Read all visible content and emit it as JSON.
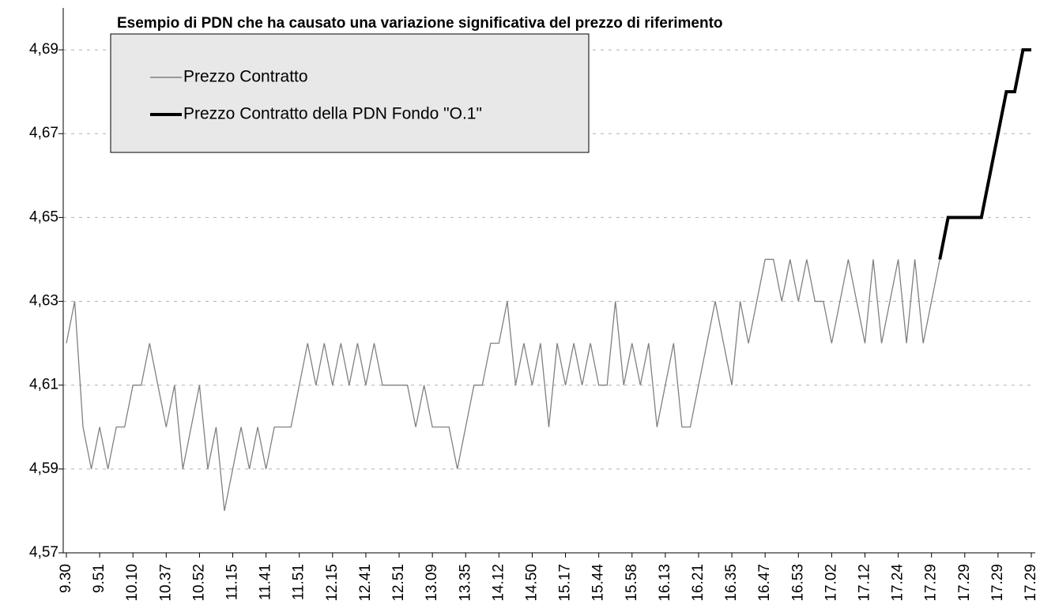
{
  "chart_data": {
    "type": "line",
    "title": "Esempio di PDN che ha causato una variazione significativa del prezzo di riferimento",
    "categories": [
      "9.30",
      null,
      null,
      null,
      "9.51",
      null,
      null,
      null,
      "10.10",
      null,
      null,
      null,
      "10.37",
      null,
      null,
      null,
      "10.52",
      null,
      null,
      null,
      "11.15",
      null,
      null,
      null,
      "11.41",
      null,
      null,
      null,
      "11.51",
      null,
      null,
      null,
      "12.15",
      null,
      null,
      null,
      "12.41",
      null,
      null,
      null,
      "12.51",
      null,
      null,
      null,
      "13.09",
      null,
      null,
      null,
      "13.35",
      null,
      null,
      null,
      "14.12",
      null,
      null,
      null,
      "14.50",
      null,
      null,
      null,
      "15.17",
      null,
      null,
      null,
      "15.44",
      null,
      null,
      null,
      "15.58",
      null,
      null,
      null,
      "16.13",
      null,
      null,
      null,
      "16.21",
      null,
      null,
      null,
      "16.35",
      null,
      null,
      null,
      "16.47",
      null,
      null,
      null,
      "16.53",
      null,
      null,
      null,
      "17.02",
      null,
      null,
      null,
      "17.12",
      null,
      null,
      null,
      "17.24",
      null,
      null,
      null,
      "17.29",
      null,
      null,
      null,
      "17.29",
      null,
      null,
      null,
      "17.29",
      null,
      null,
      null,
      "17.29"
    ],
    "series": [
      {
        "name": "Prezzo Contratto",
        "color": "#808080",
        "values": [
          4.62,
          4.63,
          4.6,
          4.59,
          4.6,
          4.59,
          4.6,
          4.6,
          4.61,
          4.61,
          4.62,
          4.61,
          4.6,
          4.61,
          4.59,
          4.6,
          4.61,
          4.59,
          4.6,
          4.58,
          4.59,
          4.6,
          4.59,
          4.6,
          4.59,
          4.6,
          4.6,
          4.6,
          4.61,
          4.62,
          4.61,
          4.62,
          4.61,
          4.62,
          4.61,
          4.62,
          4.61,
          4.62,
          4.61,
          4.61,
          4.61,
          4.61,
          4.6,
          4.61,
          4.6,
          4.6,
          4.6,
          4.59,
          4.6,
          4.61,
          4.61,
          4.62,
          4.62,
          4.63,
          4.61,
          4.62,
          4.61,
          4.62,
          4.6,
          4.62,
          4.61,
          4.62,
          4.61,
          4.62,
          4.61,
          4.61,
          4.63,
          4.61,
          4.62,
          4.61,
          4.62,
          4.6,
          4.61,
          4.62,
          4.6,
          4.6,
          4.61,
          4.62,
          4.63,
          4.62,
          4.61,
          4.63,
          4.62,
          4.63,
          4.64,
          4.64,
          4.63,
          4.64,
          4.63,
          4.64,
          4.63,
          4.63,
          4.62,
          4.63,
          4.64,
          4.63,
          4.62,
          4.64,
          4.62,
          4.63,
          4.64,
          4.62,
          4.64,
          4.62,
          4.63,
          4.64,
          null,
          null,
          null,
          null,
          null,
          null,
          null,
          null,
          null,
          null,
          null
        ]
      },
      {
        "name": "Prezzo Contratto della PDN Fondo \"O.1\"",
        "color": "#000000",
        "values": [
          null,
          null,
          null,
          null,
          null,
          null,
          null,
          null,
          null,
          null,
          null,
          null,
          null,
          null,
          null,
          null,
          null,
          null,
          null,
          null,
          null,
          null,
          null,
          null,
          null,
          null,
          null,
          null,
          null,
          null,
          null,
          null,
          null,
          null,
          null,
          null,
          null,
          null,
          null,
          null,
          null,
          null,
          null,
          null,
          null,
          null,
          null,
          null,
          null,
          null,
          null,
          null,
          null,
          null,
          null,
          null,
          null,
          null,
          null,
          null,
          null,
          null,
          null,
          null,
          null,
          null,
          null,
          null,
          null,
          null,
          null,
          null,
          null,
          null,
          null,
          null,
          null,
          null,
          null,
          null,
          null,
          null,
          null,
          null,
          null,
          null,
          null,
          null,
          null,
          null,
          null,
          null,
          null,
          null,
          null,
          null,
          null,
          null,
          null,
          null,
          null,
          null,
          null,
          null,
          null,
          4.64,
          4.65,
          4.65,
          4.65,
          4.65,
          4.65,
          4.66,
          4.67,
          4.68,
          4.68,
          4.69,
          4.69
        ]
      }
    ],
    "ylim": [
      4.57,
      4.7
    ],
    "yticks": [
      {
        "value": 4.57,
        "label": "4,57"
      },
      {
        "value": 4.59,
        "label": "4,59"
      },
      {
        "value": 4.61,
        "label": "4,61"
      },
      {
        "value": 4.63,
        "label": "4,63"
      },
      {
        "value": 4.65,
        "label": "4,65"
      },
      {
        "value": 4.67,
        "label": "4,67"
      },
      {
        "value": 4.69,
        "label": "4,69"
      }
    ],
    "grid": true,
    "legend": "upper left"
  }
}
